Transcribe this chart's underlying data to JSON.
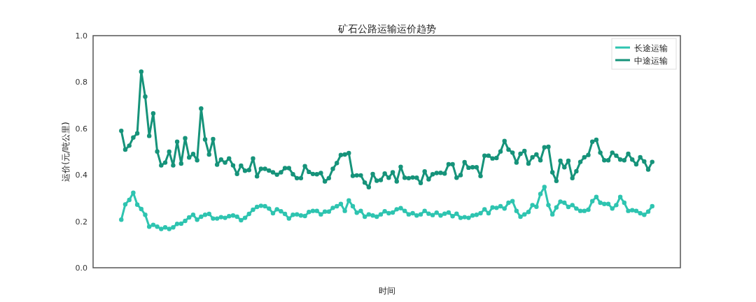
{
  "chart_data": {
    "type": "line",
    "title": "矿石公路运输运价趋势",
    "xlabel": "时间",
    "ylabel": "运价(元/吨公里)",
    "categories": [
      null,
      null,
      null,
      null,
      null,
      null,
      null,
      null,
      null,
      null,
      null,
      null,
      null,
      null,
      null,
      null,
      null,
      null,
      null,
      null,
      null,
      null,
      null,
      null,
      null,
      null,
      null,
      null,
      null,
      null,
      null,
      null,
      null,
      null,
      null,
      null,
      null,
      null,
      null,
      null,
      null,
      null,
      null,
      null,
      null,
      null,
      null,
      null,
      null,
      null,
      null,
      null,
      null,
      null,
      null,
      null,
      null,
      null,
      null,
      null,
      null,
      null,
      null,
      null,
      null,
      null,
      null,
      null,
      null,
      null,
      null,
      null,
      null,
      null,
      null,
      null,
      null,
      null,
      null,
      null,
      null,
      null,
      null,
      null,
      null,
      null,
      null,
      null,
      null,
      null,
      null,
      null,
      null,
      null,
      null,
      null,
      null,
      null,
      null,
      null,
      null,
      null,
      null,
      null,
      null,
      null,
      null,
      null,
      null,
      null,
      null,
      null,
      null,
      null,
      null,
      null,
      null,
      null,
      null,
      null,
      null,
      null,
      null,
      null,
      null,
      null,
      null,
      null,
      null,
      null,
      null,
      null,
      null,
      null
    ],
    "series": [
      {
        "name": "长途运输",
        "color": "#2ec4b0",
        "values": [
          0.207,
          0.273,
          0.292,
          0.323,
          0.272,
          0.253,
          0.228,
          0.177,
          0.185,
          0.177,
          0.167,
          0.174,
          0.167,
          0.174,
          0.189,
          0.19,
          0.202,
          0.217,
          0.228,
          0.207,
          0.22,
          0.228,
          0.232,
          0.212,
          0.212,
          0.218,
          0.215,
          0.222,
          0.225,
          0.22,
          0.205,
          0.215,
          0.232,
          0.25,
          0.262,
          0.267,
          0.265,
          0.255,
          0.235,
          0.252,
          0.243,
          0.232,
          0.212,
          0.228,
          0.23,
          0.225,
          0.223,
          0.24,
          0.245,
          0.245,
          0.23,
          0.242,
          0.242,
          0.258,
          0.265,
          0.275,
          0.245,
          0.29,
          0.265,
          0.237,
          0.245,
          0.22,
          0.23,
          0.225,
          0.22,
          0.23,
          0.243,
          0.235,
          0.238,
          0.252,
          0.257,
          0.245,
          0.23,
          0.235,
          0.225,
          0.23,
          0.245,
          0.233,
          0.227,
          0.237,
          0.225,
          0.233,
          0.238,
          0.222,
          0.233,
          0.215,
          0.218,
          0.215,
          0.225,
          0.228,
          0.235,
          0.252,
          0.235,
          0.26,
          0.258,
          0.265,
          0.255,
          0.28,
          0.287,
          0.245,
          0.22,
          0.23,
          0.24,
          0.27,
          0.263,
          0.318,
          0.348,
          0.27,
          0.23,
          0.26,
          0.285,
          0.28,
          0.262,
          0.27,
          0.255,
          0.245,
          0.245,
          0.25,
          0.287,
          0.305,
          0.28,
          0.275,
          0.275,
          0.255,
          0.27,
          0.305,
          0.28,
          0.245,
          0.248,
          0.245,
          0.235,
          0.228,
          0.242,
          0.265
        ]
      },
      {
        "name": "中途运输",
        "color": "#16937a",
        "values": [
          0.59,
          0.509,
          0.526,
          0.561,
          0.579,
          0.845,
          0.737,
          0.568,
          0.665,
          0.501,
          0.441,
          0.453,
          0.5,
          0.441,
          0.543,
          0.449,
          0.558,
          0.475,
          0.49,
          0.463,
          0.686,
          0.553,
          0.488,
          0.554,
          0.444,
          0.466,
          0.453,
          0.471,
          0.441,
          0.404,
          0.44,
          0.418,
          0.421,
          0.471,
          0.394,
          0.426,
          0.426,
          0.419,
          0.411,
          0.401,
          0.411,
          0.429,
          0.429,
          0.403,
          0.386,
          0.386,
          0.438,
          0.413,
          0.404,
          0.403,
          0.408,
          0.372,
          0.386,
          0.426,
          0.451,
          0.486,
          0.488,
          0.494,
          0.396,
          0.398,
          0.398,
          0.367,
          0.347,
          0.404,
          0.375,
          0.378,
          0.406,
          0.388,
          0.411,
          0.372,
          0.435,
          0.388,
          0.386,
          0.389,
          0.388,
          0.365,
          0.415,
          0.381,
          0.403,
          0.408,
          0.409,
          0.406,
          0.446,
          0.446,
          0.388,
          0.399,
          0.455,
          0.431,
          0.433,
          0.433,
          0.395,
          0.483,
          0.483,
          0.471,
          0.473,
          0.501,
          0.546,
          0.509,
          0.496,
          0.453,
          0.491,
          0.503,
          0.449,
          0.476,
          0.488,
          0.463,
          0.519,
          0.521,
          0.411,
          0.374,
          0.461,
          0.433,
          0.461,
          0.386,
          0.416,
          0.456,
          0.476,
          0.486,
          0.543,
          0.551,
          0.496,
          0.463,
          0.463,
          0.496,
          0.483,
          0.466,
          0.463,
          0.491,
          0.466,
          0.446,
          0.476,
          0.458,
          0.423,
          0.456
        ]
      }
    ],
    "ylim": [
      0,
      1
    ],
    "yticks": [
      {
        "value": 0,
        "label": "0.0"
      },
      {
        "value": 0.2,
        "label": "0.2"
      },
      {
        "value": 0.4,
        "label": "0.4"
      },
      {
        "value": 0.6,
        "label": "0.6"
      },
      {
        "value": 0.8,
        "label": "0.8"
      },
      {
        "value": 1,
        "label": "1.0"
      }
    ],
    "grid": false,
    "legend": "top right",
    "marker": "circle",
    "line_style": "solid"
  }
}
